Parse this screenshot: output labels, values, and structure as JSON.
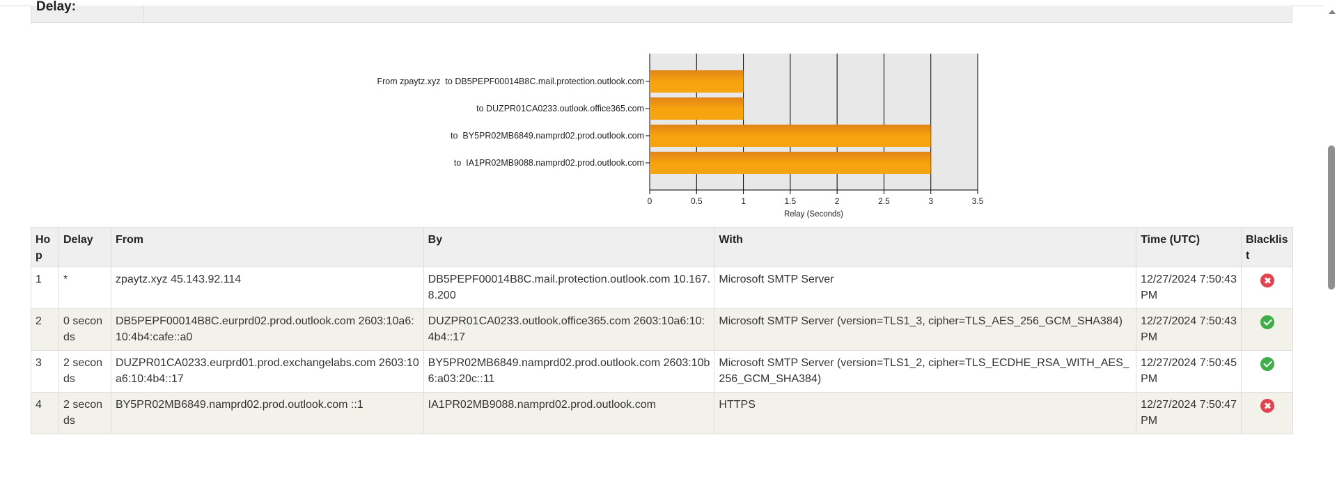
{
  "delay_section": {
    "label": "Delay:"
  },
  "chart_data": {
    "type": "bar",
    "orientation": "horizontal",
    "categories": [
      "From zpaytz.xyz  to DB5PEPF00014B8C.mail.protection.outlook.com",
      "to DUZPR01CA0233.outlook.office365.com",
      "to  BY5PR02MB6849.namprd02.prod.outlook.com",
      "to  IA1PR02MB9088.namprd02.prod.outlook.com"
    ],
    "values": [
      1,
      1,
      3,
      3
    ],
    "xlabel": "Relay (Seconds)",
    "xlim": [
      0,
      3.5
    ],
    "xticks": [
      "0",
      "0.5",
      "1",
      "1.5",
      "2",
      "2.5",
      "3",
      "3.5"
    ],
    "grid": true,
    "colors": {
      "bar_top": "#e8921a",
      "bar_mid": "#f7a80f",
      "plot_bg": "#e8e8e8"
    }
  },
  "table": {
    "headers": {
      "hop": "Hop",
      "delay": "Delay",
      "from": "From",
      "by": "By",
      "with": "With",
      "time": "Time (UTC)",
      "blacklist": "Blacklist"
    },
    "rows": [
      {
        "hop": "1",
        "delay": "*",
        "from": "zpaytz.xyz 45.143.92.114",
        "by": "DB5PEPF00014B8C.mail.protection.outlook.com 10.167.8.200",
        "with": "Microsoft SMTP Server",
        "time": "12/27/2024 7:50:43 PM",
        "blacklist": "x-icon",
        "blacklisted": true
      },
      {
        "hop": "2",
        "delay": "0 seconds",
        "from": "DB5PEPF00014B8C.eurprd02.prod.outlook.com 2603:10a6:10:4b4:cafe::a0",
        "by": "DUZPR01CA0233.outlook.office365.com 2603:10a6:10:4b4::17",
        "with": "Microsoft SMTP Server (version=TLS1_3, cipher=TLS_AES_256_GCM_SHA384)",
        "time": "12/27/2024 7:50:43 PM",
        "blacklist": "check-icon",
        "blacklisted": false
      },
      {
        "hop": "3",
        "delay": "2 seconds",
        "from": "DUZPR01CA0233.eurprd01.prod.exchangelabs.com 2603:10a6:10:4b4::17",
        "by": "BY5PR02MB6849.namprd02.prod.outlook.com 2603:10b6:a03:20c::11",
        "with": "Microsoft SMTP Server (version=TLS1_2, cipher=TLS_ECDHE_RSA_WITH_AES_256_GCM_SHA384)",
        "time": "12/27/2024 7:50:45 PM",
        "blacklist": "check-icon",
        "blacklisted": false
      },
      {
        "hop": "4",
        "delay": "2 seconds",
        "from": "BY5PR02MB6849.namprd02.prod.outlook.com ::1",
        "by": "IA1PR02MB9088.namprd02.prod.outlook.com",
        "with": "HTTPS",
        "time": "12/27/2024 7:50:47 PM",
        "blacklist": "x-icon",
        "blacklisted": true
      }
    ]
  }
}
